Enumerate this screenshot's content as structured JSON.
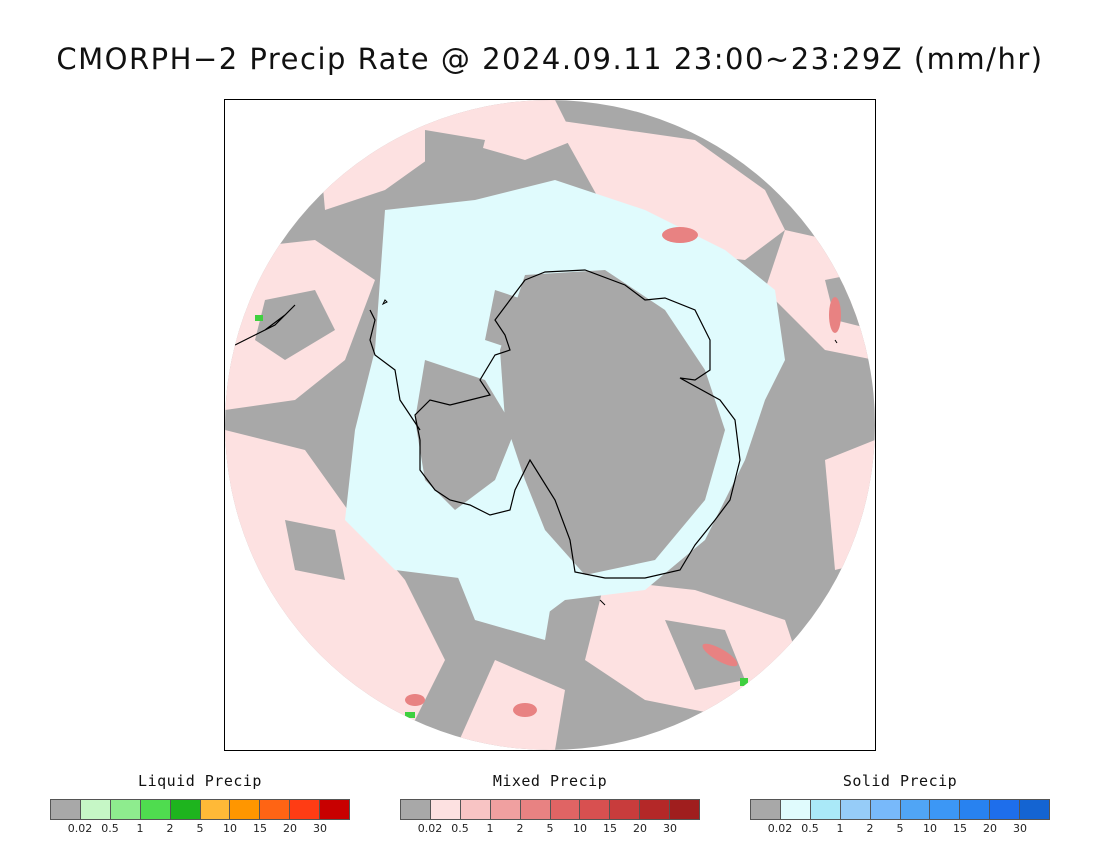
{
  "title": "CMORPH−2 Precip Rate @ 2024.09.11 23:00~23:29Z (mm/hr)",
  "map": {
    "projection": "south polar stereographic",
    "colors": {
      "no_precip_grey": "#a8a8a8",
      "mixed_light_pink": "#fde1e1",
      "mixed_pink": "#f6b8b8",
      "mixed_red": "#d86a6a",
      "solid_light_cyan": "#e0fbfd",
      "liquid_green": "#3fd03f",
      "coastline": "#000000"
    }
  },
  "legends": [
    {
      "title": "Liquid Precip",
      "colors": [
        "#a8a8a8",
        "#c6f7c6",
        "#8eec8e",
        "#4fdc4f",
        "#1eb41e",
        "#ffb937",
        "#ff9600",
        "#ff6414",
        "#ff3c14",
        "#c80000"
      ],
      "ticks": [
        "0.02",
        "0.5",
        "1",
        "2",
        "5",
        "10",
        "15",
        "20",
        "30"
      ]
    },
    {
      "title": "Mixed Precip",
      "colors": [
        "#a8a8a8",
        "#fde1e1",
        "#f8c4c4",
        "#f0a0a0",
        "#e88282",
        "#e06464",
        "#d85050",
        "#c83c3c",
        "#b42828",
        "#a01e1e"
      ],
      "ticks": [
        "0.02",
        "0.5",
        "1",
        "2",
        "5",
        "10",
        "15",
        "20",
        "30"
      ]
    },
    {
      "title": "Solid Precip",
      "colors": [
        "#a8a8a8",
        "#e0fbfd",
        "#aae9f8",
        "#96ccf8",
        "#78b9fa",
        "#50a5f5",
        "#3c97f5",
        "#2882f0",
        "#1e6eeb",
        "#1464d2"
      ],
      "ticks": [
        "0.02",
        "0.5",
        "1",
        "2",
        "5",
        "10",
        "15",
        "20",
        "30"
      ]
    }
  ]
}
